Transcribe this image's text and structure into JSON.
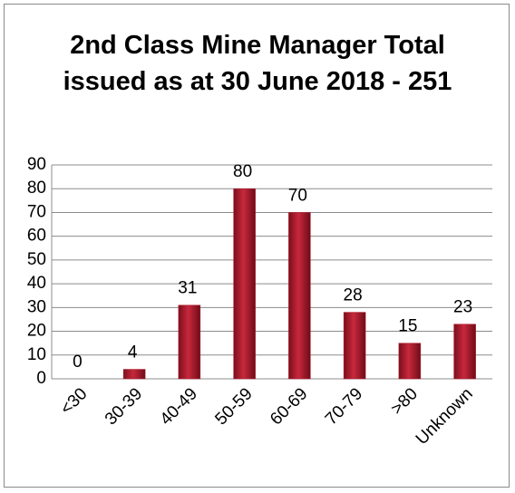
{
  "chart_data": {
    "type": "bar",
    "title": "2nd Class Mine Manager Total issued as at 30 June 2018 - 251",
    "categories": [
      "<30",
      "30-39",
      "40-49",
      "50-59",
      "60-69",
      "70-79",
      ">80",
      "Unknown"
    ],
    "values": [
      0,
      4,
      31,
      80,
      70,
      28,
      15,
      23
    ],
    "color": "#b01c2e",
    "ylim": [
      0,
      90
    ],
    "yticks": [
      0,
      10,
      20,
      30,
      40,
      50,
      60,
      70,
      80,
      90
    ],
    "grid": true
  }
}
